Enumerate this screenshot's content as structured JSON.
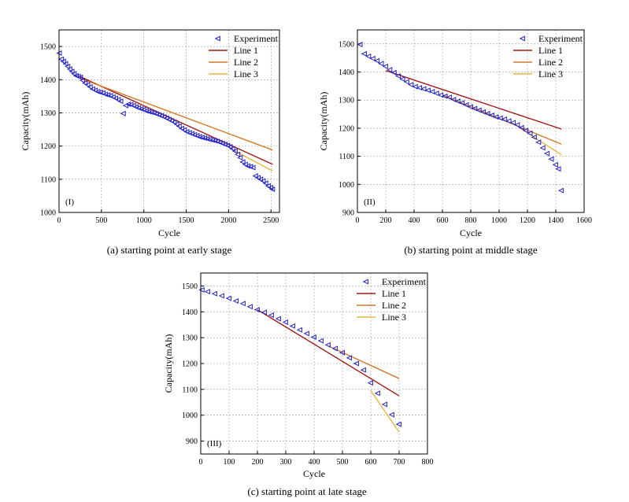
{
  "colors": {
    "experiment": "#2222cc",
    "line1": "#a01818",
    "line2": "#d07a28",
    "line3": "#e8b640"
  },
  "chart_data": [
    {
      "type": "line",
      "panel_label": "(I)",
      "caption": "(a) starting point at early stage",
      "xlabel": "Cycle",
      "ylabel": "Capacity(mAh)",
      "xlim": [
        0,
        2600
      ],
      "ylim": [
        1000,
        1550
      ],
      "xticks": [
        0,
        500,
        1000,
        1500,
        2000,
        2500
      ],
      "yticks": [
        1000,
        1100,
        1200,
        1300,
        1400,
        1500
      ],
      "grid": true,
      "legend_position": "top-right",
      "series": [
        {
          "name": "Experiment",
          "kind": "marker",
          "x": [
            5,
            30,
            55,
            80,
            105,
            130,
            155,
            180,
            205,
            230,
            255,
            280,
            310,
            340,
            370,
            400,
            430,
            460,
            490,
            520,
            550,
            580,
            610,
            640,
            670,
            700,
            730,
            760,
            790,
            820,
            850,
            880,
            910,
            940,
            970,
            1000,
            1030,
            1060,
            1090,
            1120,
            1150,
            1180,
            1210,
            1240,
            1270,
            1300,
            1330,
            1360,
            1390,
            1420,
            1450,
            1480,
            1510,
            1540,
            1570,
            1600,
            1630,
            1660,
            1690,
            1720,
            1750,
            1780,
            1810,
            1840,
            1870,
            1900,
            1930,
            1960,
            1990,
            2020,
            2050,
            2080,
            2110,
            2140,
            2170,
            2200,
            2230,
            2260,
            2290,
            2320,
            2350,
            2380,
            2410,
            2440,
            2470,
            2500,
            2520
          ],
          "y": [
            1480,
            1462,
            1455,
            1448,
            1440,
            1432,
            1425,
            1418,
            1412,
            1410,
            1407,
            1398,
            1390,
            1385,
            1378,
            1372,
            1368,
            1364,
            1362,
            1360,
            1356,
            1354,
            1352,
            1348,
            1344,
            1340,
            1335,
            1298,
            1322,
            1326,
            1325,
            1322,
            1318,
            1315,
            1312,
            1310,
            1306,
            1304,
            1302,
            1300,
            1297,
            1294,
            1291,
            1288,
            1284,
            1280,
            1276,
            1272,
            1266,
            1260,
            1253,
            1249,
            1243,
            1240,
            1237,
            1234,
            1231,
            1228,
            1226,
            1224,
            1222,
            1220,
            1218,
            1216,
            1214,
            1211,
            1208,
            1205,
            1202,
            1198,
            1192,
            1185,
            1175,
            1165,
            1152,
            1145,
            1140,
            1138,
            1135,
            1110,
            1105,
            1100,
            1095,
            1088,
            1080,
            1075,
            1070
          ]
        },
        {
          "name": "Line 1",
          "kind": "line",
          "x": [
            240,
            2520
          ],
          "y": [
            1410,
            1145
          ]
        },
        {
          "name": "Line 2",
          "kind": "line",
          "x": [
            240,
            2520
          ],
          "y": [
            1405,
            1188
          ]
        },
        {
          "name": "Line 3",
          "kind": "line",
          "x": [
            2000,
            2520
          ],
          "y": [
            1195,
            1125
          ]
        }
      ]
    },
    {
      "type": "line",
      "panel_label": "(II)",
      "caption": "(b) starting point at middle stage",
      "xlabel": "Cycle",
      "ylabel": "Capacity(mAh)",
      "xlim": [
        0,
        1600
      ],
      "ylim": [
        900,
        1550
      ],
      "xticks": [
        0,
        200,
        400,
        600,
        800,
        1000,
        1200,
        1400,
        1600
      ],
      "yticks": [
        900,
        1000,
        1100,
        1200,
        1300,
        1400,
        1500
      ],
      "grid": true,
      "legend_position": "top-right",
      "series": [
        {
          "name": "Experiment",
          "kind": "marker",
          "x": [
            20,
            50,
            80,
            110,
            140,
            170,
            200,
            230,
            260,
            290,
            320,
            350,
            380,
            410,
            440,
            470,
            500,
            530,
            560,
            590,
            620,
            650,
            680,
            710,
            740,
            770,
            800,
            830,
            860,
            890,
            920,
            950,
            980,
            1010,
            1040,
            1070,
            1100,
            1130,
            1160,
            1190,
            1220,
            1250,
            1280,
            1310,
            1340,
            1370,
            1400,
            1420,
            1440
          ],
          "y": [
            1498,
            1465,
            1456,
            1448,
            1440,
            1430,
            1420,
            1408,
            1398,
            1386,
            1375,
            1365,
            1355,
            1348,
            1344,
            1340,
            1335,
            1330,
            1324,
            1318,
            1314,
            1310,
            1302,
            1296,
            1290,
            1283,
            1276,
            1270,
            1264,
            1258,
            1252,
            1246,
            1240,
            1236,
            1232,
            1226,
            1220,
            1212,
            1202,
            1192,
            1182,
            1168,
            1150,
            1130,
            1110,
            1090,
            1070,
            1055,
            978
          ]
        },
        {
          "name": "Line 1",
          "kind": "line",
          "x": [
            200,
            1440
          ],
          "y": [
            1405,
            1197
          ]
        },
        {
          "name": "Line 2",
          "kind": "line",
          "x": [
            600,
            1440
          ],
          "y": [
            1318,
            1143
          ]
        },
        {
          "name": "Line 3",
          "kind": "line",
          "x": [
            1150,
            1440
          ],
          "y": [
            1200,
            1105
          ]
        }
      ]
    },
    {
      "type": "line",
      "panel_label": "(III)",
      "caption": "(c) starting point at late stage",
      "xlabel": "Cycle",
      "ylabel": "Capacity(mAh)",
      "xlim": [
        0,
        800
      ],
      "ylim": [
        850,
        1550
      ],
      "xticks": [
        0,
        100,
        200,
        300,
        400,
        500,
        600,
        700,
        800
      ],
      "yticks": [
        900,
        1000,
        1100,
        1200,
        1300,
        1400,
        1500
      ],
      "grid": true,
      "legend_position": "top-right",
      "series": [
        {
          "name": "Experiment",
          "kind": "marker",
          "x": [
            5,
            25,
            50,
            75,
            100,
            125,
            150,
            175,
            200,
            225,
            250,
            275,
            300,
            325,
            350,
            375,
            400,
            425,
            450,
            475,
            500,
            525,
            550,
            575,
            600,
            625,
            650,
            675,
            700
          ],
          "y": [
            1485,
            1478,
            1470,
            1462,
            1452,
            1442,
            1432,
            1420,
            1408,
            1398,
            1387,
            1373,
            1360,
            1345,
            1330,
            1316,
            1302,
            1288,
            1272,
            1258,
            1242,
            1222,
            1200,
            1175,
            1125,
            1085,
            1042,
            1002,
            965
          ]
        },
        {
          "name": "Line 1",
          "kind": "line",
          "x": [
            200,
            700
          ],
          "y": [
            1408,
            1075
          ]
        },
        {
          "name": "Line 2",
          "kind": "line",
          "x": [
            450,
            700
          ],
          "y": [
            1268,
            1142
          ]
        },
        {
          "name": "Line 3",
          "kind": "line",
          "x": [
            600,
            700
          ],
          "y": [
            1095,
            935
          ]
        }
      ]
    }
  ]
}
